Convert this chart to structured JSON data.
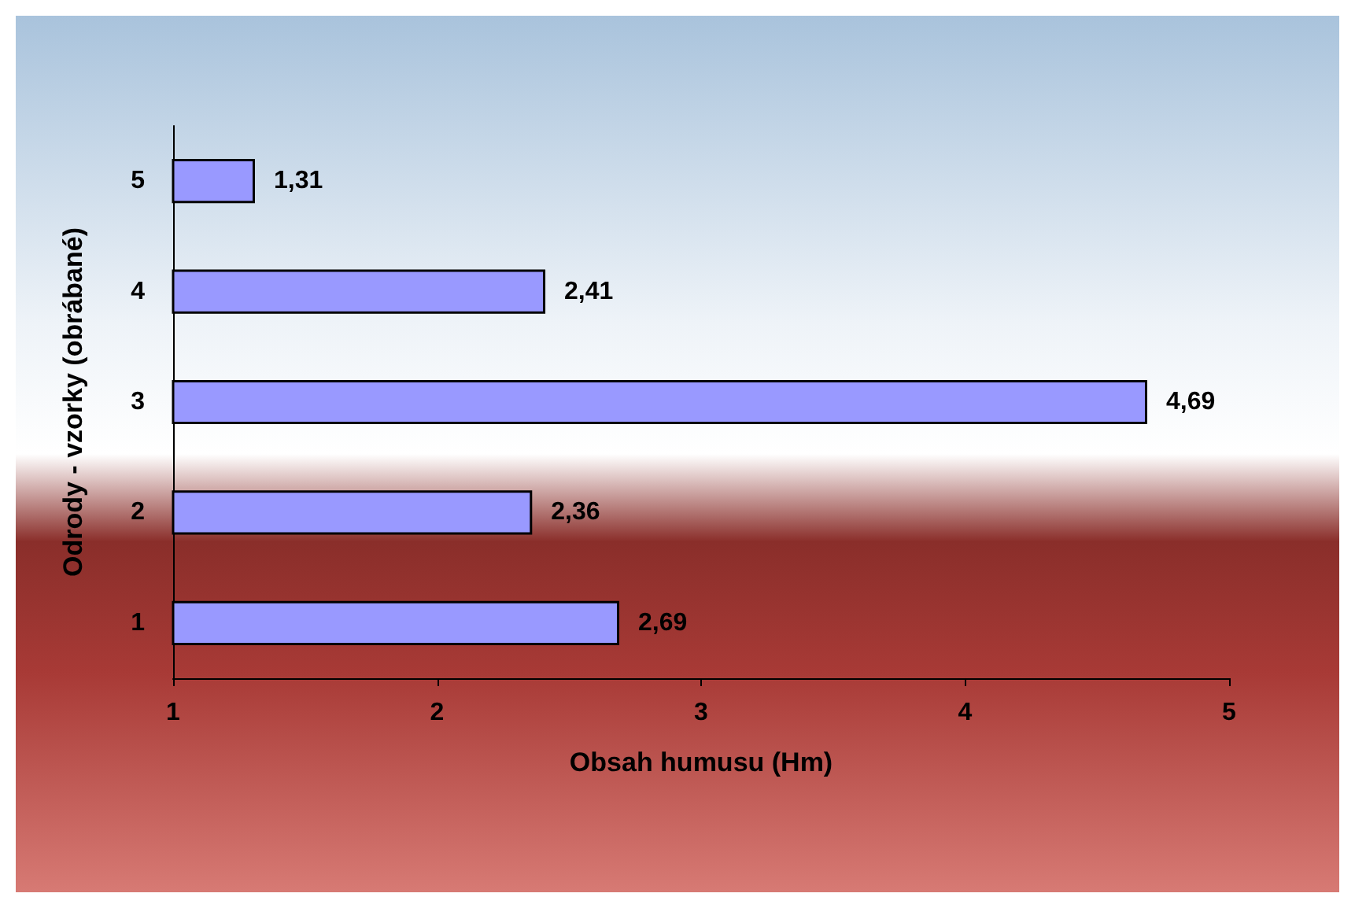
{
  "chart_data": {
    "type": "bar",
    "orientation": "horizontal",
    "xlabel": "Obsah humusu (Hm)",
    "ylabel": "Odrody - vzorky (obrábané)",
    "categories": [
      "5",
      "4",
      "3",
      "2",
      "1"
    ],
    "values": [
      1.31,
      2.41,
      4.69,
      2.36,
      2.69
    ],
    "value_labels": [
      "1,31",
      "2,41",
      "4,69",
      "2,36",
      "2,69"
    ],
    "color": "#9999ff",
    "xlim": [
      1,
      5
    ],
    "xticks": [
      1,
      2,
      3,
      4,
      5
    ],
    "grid": false
  }
}
